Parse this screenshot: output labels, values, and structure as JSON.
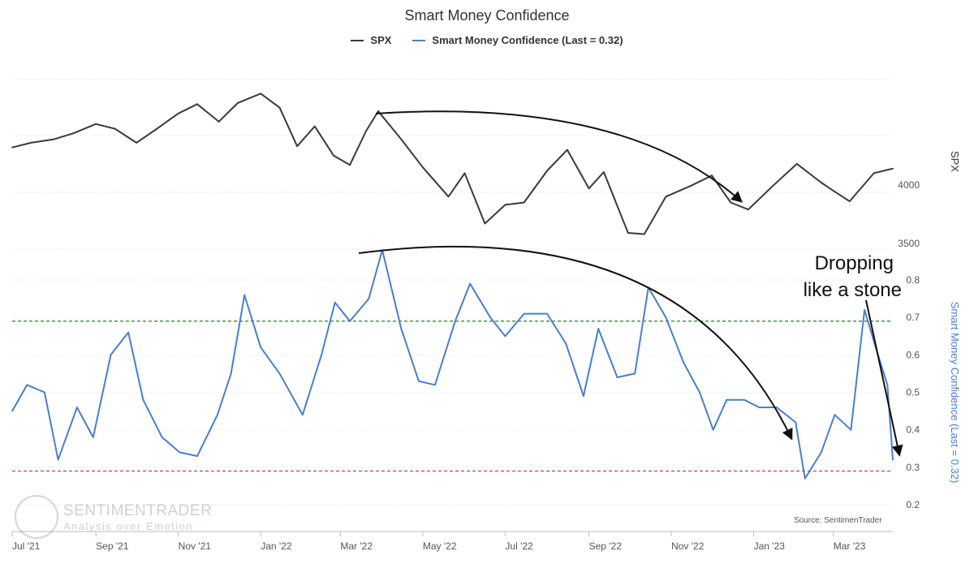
{
  "chart_data": {
    "title": "Smart Money Confidence",
    "legend": [
      {
        "name": "SPX",
        "color": "#3a3a3a"
      },
      {
        "name": "Smart Money Confidence (Last = 0.32)",
        "color": "#4a7fc8"
      }
    ],
    "source": "Source: SentimenTrader",
    "logo": {
      "name": "SENTIMENTRADER",
      "tagline": "Analysis over Emotion"
    },
    "x_ticks": [
      "Jul '21",
      "Sep '21",
      "Nov '21",
      "Jan '22",
      "Mar '22",
      "May '22",
      "Jul '22",
      "Sep '22",
      "Nov '22",
      "Jan '23",
      "Mar '23"
    ],
    "x_range": [
      "2021-07-01",
      "2023-04-14"
    ],
    "annotations": {
      "label": "Dropping like a stone",
      "line1": "Dropping",
      "line2": "like a stone"
    },
    "panels": [
      {
        "series": "SPX",
        "type": "line",
        "color": "#3a3a3a",
        "axis_title": "SPX",
        "yticks": [
          3500,
          4000
        ],
        "ylim": [
          3500,
          4900
        ],
        "points": [
          [
            "2021-07-01",
            4320
          ],
          [
            "2021-07-15",
            4360
          ],
          [
            "2021-08-01",
            4390
          ],
          [
            "2021-08-15",
            4440
          ],
          [
            "2021-09-01",
            4520
          ],
          [
            "2021-09-15",
            4480
          ],
          [
            "2021-10-01",
            4360
          ],
          [
            "2021-10-15",
            4470
          ],
          [
            "2021-11-01",
            4610
          ],
          [
            "2021-11-15",
            4690
          ],
          [
            "2021-12-01",
            4540
          ],
          [
            "2021-12-15",
            4700
          ],
          [
            "2022-01-01",
            4780
          ],
          [
            "2022-01-15",
            4660
          ],
          [
            "2022-01-28",
            4330
          ],
          [
            "2022-02-10",
            4500
          ],
          [
            "2022-02-24",
            4250
          ],
          [
            "2022-03-08",
            4170
          ],
          [
            "2022-03-20",
            4460
          ],
          [
            "2022-03-29",
            4630
          ],
          [
            "2022-04-15",
            4390
          ],
          [
            "2022-05-01",
            4150
          ],
          [
            "2022-05-20",
            3900
          ],
          [
            "2022-06-01",
            4100
          ],
          [
            "2022-06-16",
            3670
          ],
          [
            "2022-07-01",
            3830
          ],
          [
            "2022-07-15",
            3850
          ],
          [
            "2022-08-01",
            4120
          ],
          [
            "2022-08-16",
            4300
          ],
          [
            "2022-09-01",
            3970
          ],
          [
            "2022-09-12",
            4110
          ],
          [
            "2022-09-30",
            3590
          ],
          [
            "2022-10-12",
            3580
          ],
          [
            "2022-10-28",
            3900
          ],
          [
            "2022-11-15",
            3990
          ],
          [
            "2022-12-01",
            4080
          ],
          [
            "2022-12-15",
            3850
          ],
          [
            "2022-12-28",
            3790
          ],
          [
            "2023-01-15",
            3990
          ],
          [
            "2023-02-02",
            4180
          ],
          [
            "2023-02-20",
            4020
          ],
          [
            "2023-03-01",
            3950
          ],
          [
            "2023-03-13",
            3860
          ],
          [
            "2023-03-31",
            4100
          ],
          [
            "2023-04-14",
            4140
          ]
        ]
      },
      {
        "series": "Smart Money Confidence (Last = 0.32)",
        "type": "line",
        "color": "#4a7fc8",
        "axis_title": "Smart Money Confidence (Last = 0.32)",
        "yticks": [
          0.2,
          0.3,
          0.4,
          0.5,
          0.6,
          0.7,
          0.8
        ],
        "ylim": [
          0.2,
          0.8
        ],
        "reference_lines": [
          {
            "value": 0.69,
            "color": "#2d7a2d"
          },
          {
            "value": 0.29,
            "color": "#c0392b"
          }
        ],
        "points": [
          [
            "2021-07-01",
            0.45
          ],
          [
            "2021-07-12",
            0.52
          ],
          [
            "2021-07-25",
            0.5
          ],
          [
            "2021-08-04",
            0.32
          ],
          [
            "2021-08-18",
            0.46
          ],
          [
            "2021-08-30",
            0.38
          ],
          [
            "2021-09-12",
            0.6
          ],
          [
            "2021-09-25",
            0.66
          ],
          [
            "2021-10-06",
            0.48
          ],
          [
            "2021-10-20",
            0.38
          ],
          [
            "2021-11-02",
            0.34
          ],
          [
            "2021-11-15",
            0.33
          ],
          [
            "2021-11-30",
            0.44
          ],
          [
            "2021-12-10",
            0.55
          ],
          [
            "2021-12-20",
            0.76
          ],
          [
            "2022-01-01",
            0.62
          ],
          [
            "2022-01-15",
            0.55
          ],
          [
            "2022-02-01",
            0.44
          ],
          [
            "2022-02-15",
            0.6
          ],
          [
            "2022-02-25",
            0.74
          ],
          [
            "2022-03-08",
            0.69
          ],
          [
            "2022-03-22",
            0.75
          ],
          [
            "2022-04-01",
            0.88
          ],
          [
            "2022-04-15",
            0.67
          ],
          [
            "2022-04-28",
            0.53
          ],
          [
            "2022-05-10",
            0.52
          ],
          [
            "2022-05-25",
            0.69
          ],
          [
            "2022-06-05",
            0.79
          ],
          [
            "2022-06-20",
            0.7
          ],
          [
            "2022-07-01",
            0.65
          ],
          [
            "2022-07-15",
            0.71
          ],
          [
            "2022-08-01",
            0.71
          ],
          [
            "2022-08-15",
            0.63
          ],
          [
            "2022-08-28",
            0.49
          ],
          [
            "2022-09-08",
            0.67
          ],
          [
            "2022-09-22",
            0.54
          ],
          [
            "2022-10-05",
            0.55
          ],
          [
            "2022-10-15",
            0.78
          ],
          [
            "2022-10-28",
            0.7
          ],
          [
            "2022-11-10",
            0.58
          ],
          [
            "2022-11-22",
            0.5
          ],
          [
            "2022-12-02",
            0.4
          ],
          [
            "2022-12-12",
            0.48
          ],
          [
            "2022-12-25",
            0.48
          ],
          [
            "2023-01-05",
            0.46
          ],
          [
            "2023-01-18",
            0.46
          ],
          [
            "2023-02-01",
            0.42
          ],
          [
            "2023-02-08",
            0.27
          ],
          [
            "2023-02-20",
            0.34
          ],
          [
            "2023-03-02",
            0.44
          ],
          [
            "2023-03-14",
            0.4
          ],
          [
            "2023-03-24",
            0.72
          ],
          [
            "2023-04-03",
            0.6
          ],
          [
            "2023-04-10",
            0.52
          ],
          [
            "2023-04-14",
            0.32
          ]
        ]
      }
    ]
  }
}
